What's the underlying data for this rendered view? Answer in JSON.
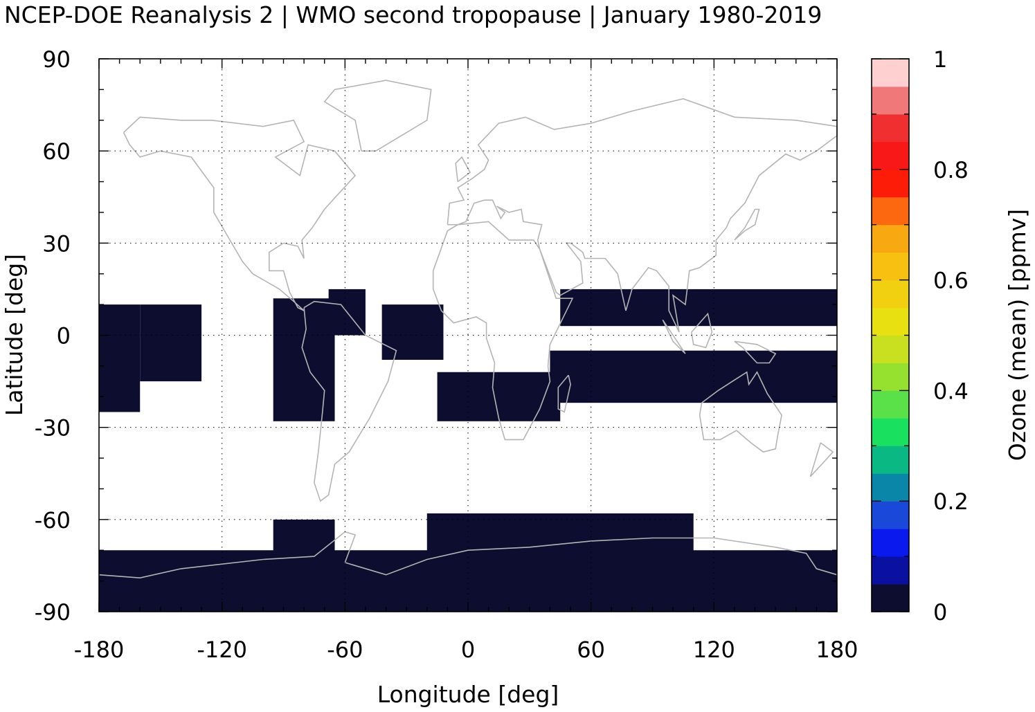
{
  "chart_data": {
    "type": "heatmap",
    "title": "NCEP-DOE Reanalysis 2 | WMO second tropopause | January 1980-2019",
    "xlabel": "Longitude [deg]",
    "ylabel": "Latitude [deg]",
    "colorbar_label": "Ozone (mean) [ppmv]",
    "xlim": [
      -180,
      180
    ],
    "ylim": [
      -90,
      90
    ],
    "xticks": [
      -180,
      -120,
      -60,
      0,
      60,
      120,
      180
    ],
    "yticks": [
      90,
      60,
      30,
      0,
      -30,
      -60,
      -90
    ],
    "colorbar_ticks": [
      0,
      0.2,
      0.4,
      0.6,
      0.8,
      1
    ],
    "colorbar_range": [
      0,
      1
    ],
    "colorbar_colors": [
      "#0d0d30",
      "#0a10a0",
      "#0a1aee",
      "#1a48d8",
      "#0a86a8",
      "#0ab884",
      "#1ae060",
      "#5ae048",
      "#96e030",
      "#c8e020",
      "#e8e010",
      "#f0d010",
      "#f8c010",
      "#f8a810",
      "#fc6810",
      "#fc1c08",
      "#f81818",
      "#f03030",
      "#f07878",
      "#ffd0d0"
    ],
    "grid": true,
    "grid_style": "dotted",
    "cell_size_deg": 2.5,
    "field_description": "Mean ozone at WMO second tropopause; cells with data shown (value near 0 ppmv, darkest color); white = no data",
    "data_regions": [
      {
        "lon": [
          -180,
          -160
        ],
        "lat": [
          -25,
          10
        ],
        "value": 0.02
      },
      {
        "lon": [
          -160,
          -130
        ],
        "lat": [
          -15,
          10
        ],
        "value": 0.02
      },
      {
        "lon": [
          -95,
          -65
        ],
        "lat": [
          -28,
          12
        ],
        "value": 0.02
      },
      {
        "lon": [
          -68,
          -50
        ],
        "lat": [
          0,
          15
        ],
        "value": 0.02
      },
      {
        "lon": [
          -42,
          -12
        ],
        "lat": [
          -8,
          10
        ],
        "value": 0.02
      },
      {
        "lon": [
          -15,
          45
        ],
        "lat": [
          -28,
          -12
        ],
        "value": 0.02
      },
      {
        "lon": [
          40,
          180
        ],
        "lat": [
          -22,
          -5
        ],
        "value": 0.02
      },
      {
        "lon": [
          45,
          180
        ],
        "lat": [
          3,
          15
        ],
        "value": 0.02
      },
      {
        "lon": [
          -180,
          180
        ],
        "lat": [
          -90,
          -70
        ],
        "value": 0.02
      },
      {
        "lon": [
          -20,
          110
        ],
        "lat": [
          -72,
          -58
        ],
        "value": 0.02
      },
      {
        "lon": [
          -95,
          -65
        ],
        "lat": [
          -72,
          -60
        ],
        "value": 0.02
      }
    ]
  }
}
